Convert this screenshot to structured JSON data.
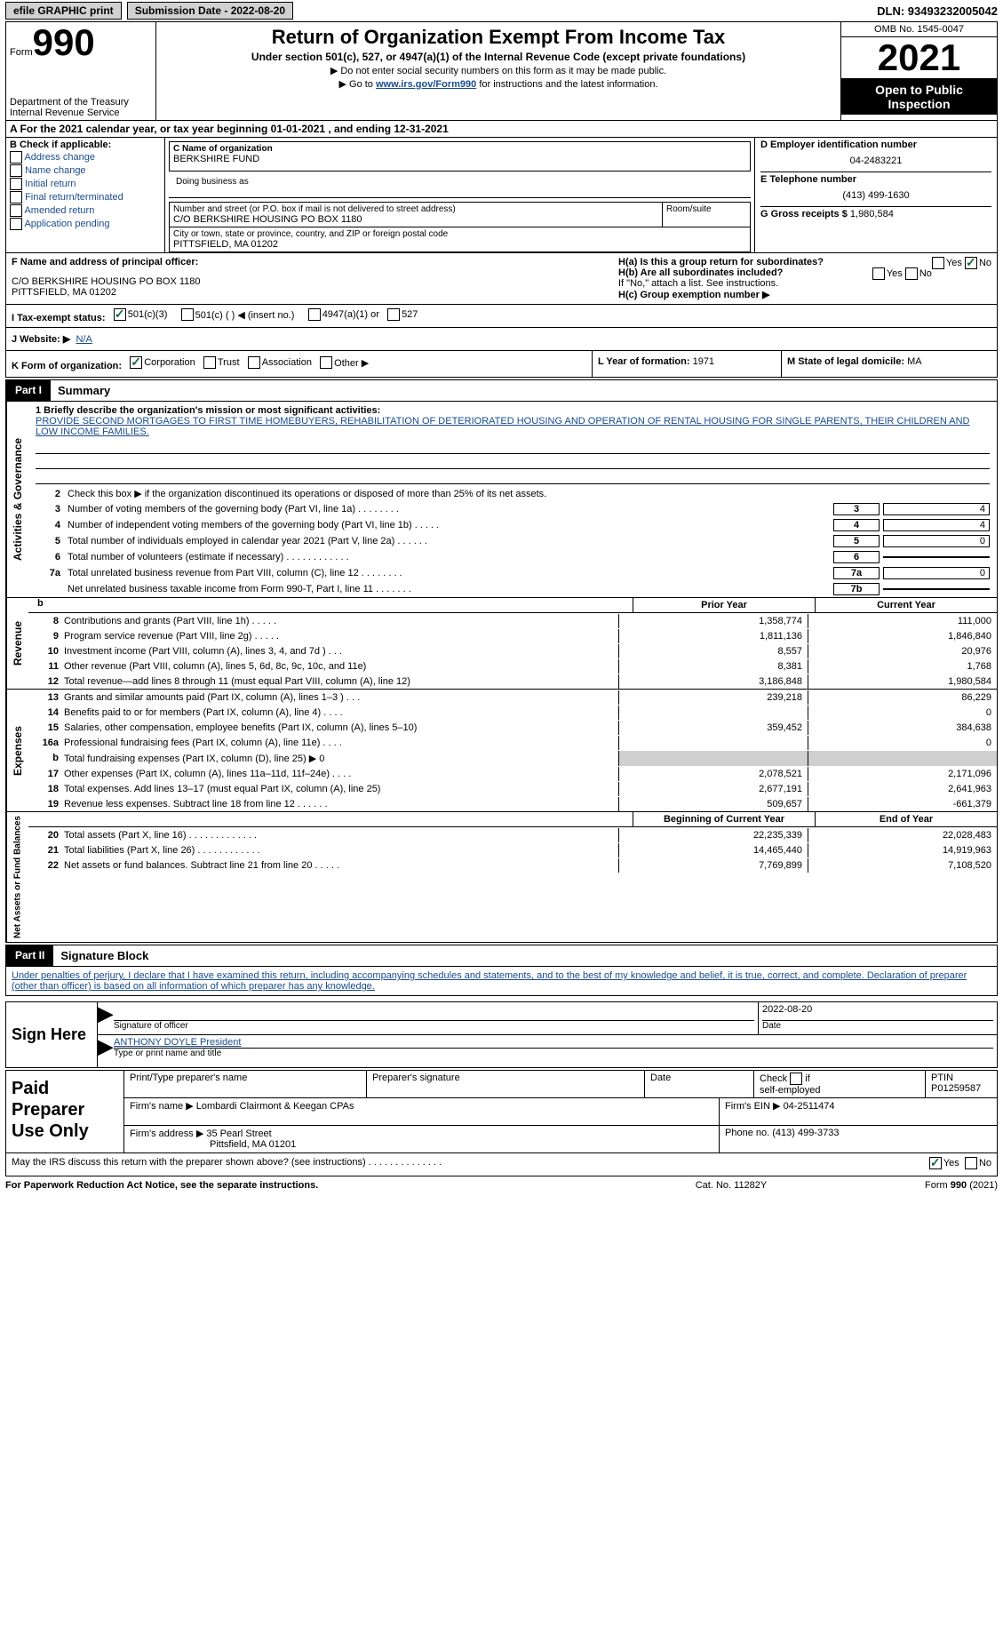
{
  "meta": {
    "efile_label": "efile GRAPHIC print",
    "submission_label": "Submission Date - 2022-08-20",
    "dln": "DLN: 93493232005042"
  },
  "header": {
    "form_word": "Form",
    "form_number": "990",
    "dept": "Department of the Treasury\nInternal Revenue Service",
    "title": "Return of Organization Exempt From Income Tax",
    "subtitle": "Under section 501(c), 527, or 4947(a)(1) of the Internal Revenue Code (except private foundations)",
    "note1": "Do not enter social security numbers on this form as it may be made public.",
    "note2_pre": "Go to ",
    "note2_link": "www.irs.gov/Form990",
    "note2_post": " for instructions and the latest information.",
    "omb": "OMB No. 1545-0047",
    "year": "2021",
    "open": "Open to Public Inspection"
  },
  "row_a": "A For the 2021 calendar year, or tax year beginning 01-01-2021    , and ending 12-31-2021",
  "section_b": {
    "label": "B Check if applicable:",
    "items": [
      "Address change",
      "Name change",
      "Initial return",
      "Final return/terminated",
      "Amended return",
      "Application pending"
    ]
  },
  "section_c": {
    "name_label": "C Name of organization",
    "name_value": "BERKSHIRE FUND",
    "dba_label": "Doing business as",
    "street_label": "Number and street (or P.O. box if mail is not delivered to street address)",
    "street_value": "C/O BERKSHIRE HOUSING PO BOX 1180",
    "suite_label": "Room/suite",
    "city_label": "City or town, state or province, country, and ZIP or foreign postal code",
    "city_value": "PITTSFIELD, MA  01202"
  },
  "section_d": {
    "ein_label": "D Employer identification number",
    "ein_value": "04-2483221",
    "tel_label": "E Telephone number",
    "tel_value": "(413) 499-1630",
    "gross_label": "G Gross receipts $",
    "gross_value": "1,980,584"
  },
  "section_f": {
    "label": "F  Name and address of principal officer:",
    "line1": "C/O BERKSHIRE HOUSING PO BOX 1180",
    "line2": "PITTSFIELD, MA  01202"
  },
  "section_h": {
    "ha_label": "H(a)  Is this a group return for subordinates?",
    "hb_label": "H(b)  Are all subordinates included?",
    "hb_note": "If \"No,\" attach a list. See instructions.",
    "hc_label": "H(c)  Group exemption number ▶"
  },
  "row_i": {
    "label": "I    Tax-exempt status:",
    "opts": [
      "501(c)(3)",
      "501(c) (   ) ◀ (insert no.)",
      "4947(a)(1) or",
      "527"
    ]
  },
  "row_j": {
    "label": "J   Website: ▶",
    "value": "N/A"
  },
  "row_k": {
    "label": "K Form of organization:",
    "opts": [
      "Corporation",
      "Trust",
      "Association",
      "Other ▶"
    ],
    "l_label": "L Year of formation:",
    "l_value": "1971",
    "m_label": "M State of legal domicile:",
    "m_value": "MA"
  },
  "part1": {
    "tag": "Part I",
    "title": "Summary",
    "line1_label": "1   Briefly describe the organization's mission or most significant activities:",
    "mission": "PROVIDE SECOND MORTGAGES TO FIRST TIME HOMEBUYERS, REHABILITATION OF DETERIORATED HOUSING AND OPERATION OF RENTAL HOUSING FOR SINGLE PARENTS, THEIR CHILDREN AND LOW INCOME FAMILIES.",
    "line2": "Check this box ▶        if the organization discontinued its operations or disposed of more than 25% of its net assets.",
    "lines": [
      {
        "n": "3",
        "d": "Number of voting members of the governing body (Part VI, line 1a)   .    .    .    .    .    .    .    .",
        "box": "3",
        "v": "4"
      },
      {
        "n": "4",
        "d": "Number of independent voting members of the governing body (Part VI, line 1b)   .    .    .    .    .",
        "box": "4",
        "v": "4"
      },
      {
        "n": "5",
        "d": "Total number of individuals employed in calendar year 2021 (Part V, line 2a)   .    .    .    .    .    .",
        "box": "5",
        "v": "0"
      },
      {
        "n": "6",
        "d": "Total number of volunteers (estimate if necessary)    .    .    .    .    .    .    .    .    .    .    .    .",
        "box": "6",
        "v": ""
      },
      {
        "n": "7a",
        "d": "Total unrelated business revenue from Part VIII, column (C), line 12   .    .    .    .    .    .    .    .",
        "box": "7a",
        "v": "0"
      },
      {
        "n": "",
        "d": "Net unrelated business taxable income from Form 990-T, Part I, line 11   .    .    .    .    .    .    .",
        "box": "7b",
        "v": ""
      }
    ]
  },
  "revenue": {
    "vlabel": "Revenue",
    "header": {
      "c1": "Prior Year",
      "c2": "Current Year"
    },
    "rows": [
      {
        "n": "8",
        "d": "Contributions and grants (Part VIII, line 1h)    .    .    .    .    .",
        "c1": "1,358,774",
        "c2": "111,000"
      },
      {
        "n": "9",
        "d": "Program service revenue (Part VIII, line 2g)    .    .    .    .    .",
        "c1": "1,811,136",
        "c2": "1,846,840"
      },
      {
        "n": "10",
        "d": "Investment income (Part VIII, column (A), lines 3, 4, and 7d )    .    .    .",
        "c1": "8,557",
        "c2": "20,976"
      },
      {
        "n": "11",
        "d": "Other revenue (Part VIII, column (A), lines 5, 6d, 8c, 9c, 10c, and 11e)",
        "c1": "8,381",
        "c2": "1,768"
      },
      {
        "n": "12",
        "d": "Total revenue—add lines 8 through 11 (must equal Part VIII, column (A), line 12)",
        "c1": "3,186,848",
        "c2": "1,980,584"
      }
    ]
  },
  "expenses": {
    "vlabel": "Expenses",
    "rows": [
      {
        "n": "13",
        "d": "Grants and similar amounts paid (Part IX, column (A), lines 1–3 )    .    .    .",
        "c1": "239,218",
        "c2": "86,229"
      },
      {
        "n": "14",
        "d": "Benefits paid to or for members (Part IX, column (A), line 4)    .    .    .    .",
        "c1": "",
        "c2": "0"
      },
      {
        "n": "15",
        "d": "Salaries, other compensation, employee benefits (Part IX, column (A), lines 5–10)",
        "c1": "359,452",
        "c2": "384,638"
      },
      {
        "n": "16a",
        "d": "Professional fundraising fees (Part IX, column (A), line 11e)    .    .    .    .",
        "c1": "",
        "c2": "0"
      },
      {
        "n": "b",
        "d": "Total fundraising expenses (Part IX, column (D), line 25) ▶ 0",
        "c1": "g",
        "c2": "g"
      },
      {
        "n": "17",
        "d": "Other expenses (Part IX, column (A), lines 11a–11d, 11f–24e)    .    .    .    .",
        "c1": "2,078,521",
        "c2": "2,171,096"
      },
      {
        "n": "18",
        "d": "Total expenses. Add lines 13–17 (must equal Part IX, column (A), line 25)",
        "c1": "2,677,191",
        "c2": "2,641,963"
      },
      {
        "n": "19",
        "d": "Revenue less expenses. Subtract line 18 from line 12   .    .    .    .    .    .",
        "c1": "509,657",
        "c2": "-661,379"
      }
    ]
  },
  "netassets": {
    "vlabel": "Net Assets or Fund Balances",
    "header": {
      "c1": "Beginning of Current Year",
      "c2": "End of Year"
    },
    "rows": [
      {
        "n": "20",
        "d": "Total assets (Part X, line 16)   .    .    .    .    .    .    .    .    .    .    .    .    .",
        "c1": "22,235,339",
        "c2": "22,028,483"
      },
      {
        "n": "21",
        "d": "Total liabilities (Part X, line 26)   .    .    .    .    .    .    .    .    .    .    .    .",
        "c1": "14,465,440",
        "c2": "14,919,963"
      },
      {
        "n": "22",
        "d": "Net assets or fund balances. Subtract line 21 from line 20   .    .    .    .    .",
        "c1": "7,769,899",
        "c2": "7,108,520"
      }
    ]
  },
  "part2": {
    "tag": "Part II",
    "title": "Signature Block",
    "declaration": "Under penalties of perjury, I declare that I have examined this return, including accompanying schedules and statements, and to the best of my knowledge and belief, it is true, correct, and complete. Declaration of preparer (other than officer) is based on all information of which preparer has any knowledge."
  },
  "sign": {
    "label": "Sign Here",
    "sig_label": "Signature of officer",
    "date": "2022-08-20",
    "date_label": "Date",
    "name": "ANTHONY DOYLE  President",
    "name_label": "Type or print name and title"
  },
  "paid": {
    "label": "Paid Preparer Use Only",
    "r1": {
      "c1_label": "Print/Type preparer's name",
      "c2_label": "Preparer's signature",
      "c3_label": "Date",
      "c4_label": "Check          if self-employed",
      "c5_label": "PTIN",
      "c5_value": "P01259587"
    },
    "r2": {
      "c1_label": "Firm's name     ▶",
      "c1_value": "Lombardi Clairmont & Keegan CPAs",
      "c2_label": "Firm's EIN ▶",
      "c2_value": "04-2511474"
    },
    "r3": {
      "c1_label": "Firm's address ▶",
      "c1_value1": "35 Pearl Street",
      "c1_value2": "Pittsfield, MA  01201",
      "c2_label": "Phone no.",
      "c2_value": "(413) 499-3733"
    }
  },
  "discuss": {
    "text": "May the IRS discuss this return with the preparer shown above? (see instructions)   .    .    .    .    .    .    .    .    .    .    .    .    .    ."
  },
  "footer": {
    "left": "For Paperwork Reduction Act Notice, see the separate instructions.",
    "mid": "Cat. No. 11282Y",
    "right": "Form 990 (2021)"
  },
  "govlabel": "Activities & Governance"
}
